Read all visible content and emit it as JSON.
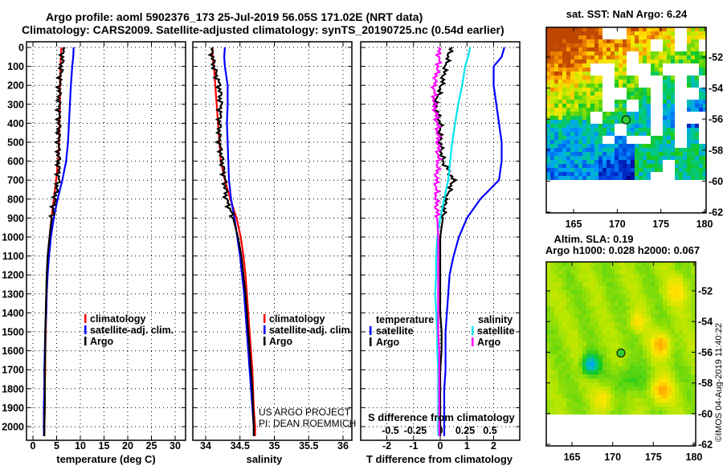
{
  "title_line1": "Argo profile: aoml 5902376_173 25-Jul-2019 56.05S 171.02E (NRT data)",
  "title_line2": "Climatology: CARS2009. Satellite-adjusted climatology: synTS_20190725.nc (0.54d earlier)",
  "credit_line1": "US ARGO PROJECT",
  "credit_line2": "PI: DEAN ROEMMICH",
  "stamp": "©IMOS 04-Aug-2019 11:40:22",
  "colors": {
    "climatology": "#ff0000",
    "satellite": "#0000ff",
    "argo": "#000000",
    "sal_satellite": "#00e5ee",
    "sal_argo": "#ff00ff",
    "marker": "#33cc33"
  },
  "chart_data": [
    {
      "type": "line",
      "name": "temperature-profile",
      "xlabel": "temperature (deg C)",
      "ylabel": "",
      "xticks": [
        "0",
        "5",
        "10",
        "15",
        "20",
        "25",
        "30"
      ],
      "xtick_values": [
        0,
        5,
        10,
        15,
        20,
        25,
        30
      ],
      "yticks": [
        "0",
        "100",
        "200",
        "300",
        "400",
        "500",
        "600",
        "700",
        "800",
        "900",
        "1000",
        "1100",
        "1200",
        "1300",
        "1400",
        "1500",
        "1600",
        "1700",
        "1800",
        "1900",
        "2000"
      ],
      "ylim": [
        2070,
        -30
      ],
      "grid": true,
      "legend": [
        "climatology",
        "satellite-adj. clim.",
        "Argo"
      ],
      "depth": [
        0,
        50,
        100,
        200,
        300,
        400,
        500,
        600,
        700,
        800,
        900,
        1000,
        1100,
        1200,
        1300,
        1400,
        1500,
        1600,
        1700,
        1800,
        1900,
        2000,
        2050
      ],
      "series": [
        {
          "name": "climatology",
          "color": "climatology",
          "values": [
            6.0,
            5.9,
            5.8,
            5.7,
            5.7,
            5.6,
            5.5,
            5.3,
            4.9,
            4.4,
            3.9,
            3.5,
            3.2,
            3.0,
            2.9,
            2.8,
            2.7,
            2.6,
            2.6,
            2.5,
            2.5,
            2.4,
            2.4
          ]
        },
        {
          "name": "satellite-adj. clim.",
          "color": "satellite",
          "values": [
            8.6,
            8.5,
            8.3,
            8.0,
            7.8,
            7.6,
            7.4,
            7.0,
            6.2,
            5.2,
            4.4,
            3.8,
            3.4,
            3.1,
            2.9,
            2.8,
            2.6,
            2.5,
            2.4,
            2.4,
            2.3,
            2.3,
            2.3
          ]
        },
        {
          "name": "Argo",
          "color": "argo",
          "values": [
            6.4,
            6.2,
            6.0,
            5.6,
            5.5,
            5.5,
            5.4,
            5.4,
            5.4,
            4.6,
            4.0,
            3.5,
            3.1,
            2.9,
            2.8,
            2.7,
            2.6,
            2.6,
            2.5,
            2.5,
            2.5,
            2.4,
            2.4
          ]
        }
      ]
    },
    {
      "type": "line",
      "name": "salinity-profile",
      "xlabel": "salinity",
      "xticks": [
        "34",
        "34.5",
        "35",
        "35.5",
        "36"
      ],
      "xtick_values": [
        34,
        34.5,
        35,
        35.5,
        36
      ],
      "ylim": [
        2070,
        -30
      ],
      "grid": true,
      "legend": [
        "climatology",
        "satellite-adj. clim.",
        "Argo"
      ],
      "depth": [
        0,
        50,
        100,
        200,
        300,
        400,
        500,
        600,
        700,
        800,
        900,
        1000,
        1100,
        1200,
        1300,
        1400,
        1500,
        1600,
        1700,
        1800,
        1900,
        2000,
        2050
      ],
      "series": [
        {
          "name": "climatology",
          "color": "climatology",
          "values": [
            34.1,
            34.1,
            34.12,
            34.14,
            34.16,
            34.18,
            34.2,
            34.22,
            34.28,
            34.36,
            34.45,
            34.51,
            34.55,
            34.58,
            34.6,
            34.62,
            34.64,
            34.66,
            34.68,
            34.69,
            34.7,
            34.72,
            34.72
          ]
        },
        {
          "name": "satellite-adj. clim.",
          "color": "satellite",
          "values": [
            34.28,
            34.27,
            34.28,
            34.32,
            34.32,
            34.31,
            34.32,
            34.33,
            34.34,
            34.37,
            34.42,
            34.46,
            34.5,
            34.53,
            34.56,
            34.58,
            34.6,
            34.62,
            34.64,
            34.66,
            34.68,
            34.7,
            34.7
          ]
        },
        {
          "name": "Argo",
          "color": "argo",
          "values": [
            34.08,
            34.1,
            34.12,
            34.2,
            34.22,
            34.2,
            34.2,
            34.24,
            34.28,
            34.3,
            34.4,
            34.47,
            34.52,
            34.55,
            34.58,
            34.6,
            34.62,
            34.64,
            34.66,
            34.68,
            34.69,
            34.7,
            34.7
          ]
        }
      ]
    },
    {
      "type": "line",
      "name": "difference-profile",
      "xlabel": "T difference from climatology",
      "xticks": [
        "-2",
        "-1",
        "0",
        "1",
        "2"
      ],
      "xtick_values": [
        -2,
        -1,
        0,
        1,
        2
      ],
      "x2label": "S difference from climatology",
      "x2ticks": [
        "-0.5",
        "-0.25",
        "0",
        "0.25",
        "0.5"
      ],
      "x2tick_values": [
        -0.5,
        -0.25,
        0,
        0.25,
        0.5
      ],
      "ylim": [
        2070,
        -30
      ],
      "grid": true,
      "legend_temperature": {
        "title": "temperature",
        "items": [
          "satellite",
          "Argo"
        ]
      },
      "legend_salinity": {
        "title": "salinity",
        "items": [
          "satellite",
          "Argo"
        ]
      },
      "depth": [
        0,
        50,
        100,
        200,
        300,
        400,
        500,
        600,
        700,
        800,
        900,
        1000,
        1100,
        1200,
        1300,
        1400,
        1500,
        1600,
        1700,
        1800,
        1900,
        2000,
        2050
      ],
      "series": [
        {
          "name": "temperature satellite",
          "axis": "T",
          "color": "satellite",
          "values": [
            2.4,
            2.3,
            2.0,
            2.0,
            2.1,
            2.2,
            2.3,
            2.3,
            2.2,
            1.5,
            1.0,
            0.7,
            0.5,
            0.35,
            0.3,
            0.25,
            0.2,
            0.2,
            0.2,
            0.15,
            0.15,
            0.15,
            0.15
          ]
        },
        {
          "name": "temperature Argo",
          "axis": "T",
          "color": "argo",
          "values": [
            0.4,
            0.3,
            0.2,
            0.05,
            -0.2,
            0.0,
            0.0,
            0.1,
            0.5,
            0.2,
            0.1,
            0.0,
            0.0,
            0.0,
            0.0,
            0.0,
            0.05,
            0.05,
            0.0,
            0.0,
            0.0,
            0.0,
            0.0
          ]
        },
        {
          "name": "salinity satellite",
          "axis": "S",
          "color": "sal_satellite",
          "values": [
            0.3,
            0.28,
            0.25,
            0.22,
            0.18,
            0.15,
            0.12,
            0.1,
            0.08,
            0.04,
            0.0,
            -0.03,
            -0.04,
            -0.04,
            -0.05,
            -0.04,
            -0.03,
            -0.03,
            -0.02,
            -0.02,
            -0.02,
            -0.02,
            -0.02
          ]
        },
        {
          "name": "salinity Argo",
          "axis": "S",
          "color": "sal_argo",
          "values": [
            -0.02,
            -0.01,
            -0.02,
            -0.06,
            -0.06,
            -0.03,
            -0.02,
            -0.02,
            -0.04,
            -0.04,
            -0.03,
            -0.02,
            -0.02,
            -0.02,
            -0.02,
            -0.02,
            -0.02,
            -0.01,
            -0.01,
            -0.01,
            -0.01,
            -0.01,
            -0.01
          ]
        }
      ]
    },
    {
      "type": "heatmap",
      "name": "sst-map",
      "title": "sat. SST: NaN Argo: 6.24",
      "xticks": [
        "165",
        "170",
        "175",
        "180"
      ],
      "xtick_values": [
        165,
        170,
        175,
        180
      ],
      "yticks": [
        "-52",
        "-54",
        "-56",
        "-58",
        "-60",
        "-62"
      ],
      "ytick_values": [
        -52,
        -54,
        -56,
        -58,
        -60,
        -62
      ],
      "argo_position": {
        "lon": 171.02,
        "lat": -56.05
      }
    },
    {
      "type": "heatmap",
      "name": "sla-map",
      "title": "Altim. SLA: 0.19",
      "subtitle": "Argo h1000: 0.028 h2000: 0.067",
      "xticks": [
        "165",
        "170",
        "175",
        "180"
      ],
      "xtick_values": [
        165,
        170,
        175,
        180
      ],
      "yticks": [
        "-52",
        "-54",
        "-56",
        "-58",
        "-60",
        "-62"
      ],
      "ytick_values": [
        -52,
        -54,
        -56,
        -58,
        -60,
        -62
      ],
      "argo_position": {
        "lon": 171.02,
        "lat": -56.05
      }
    }
  ]
}
